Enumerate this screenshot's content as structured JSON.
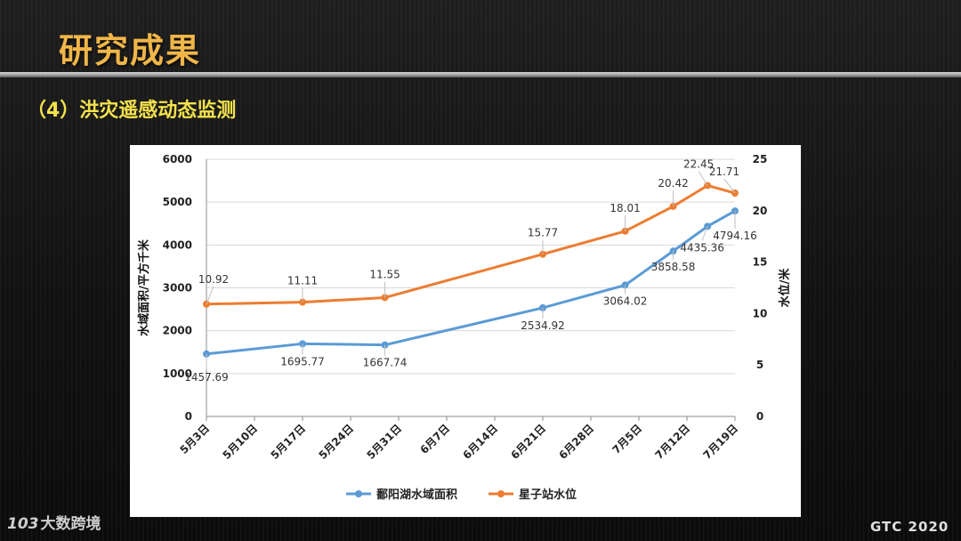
{
  "slide": {
    "title": "研究成果",
    "subtitle": "（4）洪灾遥感动态监测",
    "watermark_logo": "103",
    "watermark_text": "大数跨境",
    "brand": "GTC 2020"
  },
  "colors": {
    "title": "#f0b648",
    "subtitle": "#f3e24c",
    "area_series": "#5b9bd5",
    "level_series": "#ed7d31"
  },
  "chart_data": {
    "type": "line",
    "title": "",
    "x_categories": [
      "5月3日",
      "5月10日",
      "5月17日",
      "5月24日",
      "5月31日",
      "6月7日",
      "6月14日",
      "6月21日",
      "6月28日",
      "7月5日",
      "7月12日",
      "7月19日"
    ],
    "x_range": [
      "5月3日",
      "7月19日"
    ],
    "ylabel_left": "水域面积/平方千米",
    "ylabel_right": "水位/米",
    "y_left_range": [
      0,
      6000
    ],
    "y_left_ticks": [
      "0",
      "1000",
      "2000",
      "3000",
      "4000",
      "5000",
      "6000"
    ],
    "y_right_range": [
      0,
      25
    ],
    "y_right_ticks": [
      "0",
      "5",
      "10",
      "15",
      "20",
      "25"
    ],
    "grid": "horizontal",
    "legend_position": "bottom",
    "series": [
      {
        "name": "鄱阳湖水域面积",
        "axis": "left",
        "color": "#5b9bd5",
        "points": [
          {
            "x": "5月3日",
            "y": 1457.69,
            "label": "1457.69"
          },
          {
            "x": "5月17日",
            "y": 1695.77,
            "label": "1695.77"
          },
          {
            "x": "5月29日",
            "y": 1667.74,
            "label": "1667.74"
          },
          {
            "x": "6月21日",
            "y": 2534.92,
            "label": "2534.92"
          },
          {
            "x": "7月3日",
            "y": 3064.02,
            "label": "3064.02"
          },
          {
            "x": "7月10日",
            "y": 3858.58,
            "label": "3858.58"
          },
          {
            "x": "7月15日",
            "y": 4435.36,
            "label": "4435.36"
          },
          {
            "x": "7月19日",
            "y": 4794.16,
            "label": "4794.16"
          }
        ]
      },
      {
        "name": "星子站水位",
        "axis": "right",
        "color": "#ed7d31",
        "points": [
          {
            "x": "5月3日",
            "y": 10.92,
            "label": "10.92"
          },
          {
            "x": "5月17日",
            "y": 11.11,
            "label": "11.11"
          },
          {
            "x": "5月29日",
            "y": 11.55,
            "label": "11.55"
          },
          {
            "x": "6月21日",
            "y": 15.77,
            "label": "15.77"
          },
          {
            "x": "7月3日",
            "y": 18.01,
            "label": "18.01"
          },
          {
            "x": "7月10日",
            "y": 20.42,
            "label": "20.42"
          },
          {
            "x": "7月15日",
            "y": 22.45,
            "label": "22.45"
          },
          {
            "x": "7月19日",
            "y": 21.71,
            "label": "21.71"
          }
        ]
      }
    ]
  }
}
